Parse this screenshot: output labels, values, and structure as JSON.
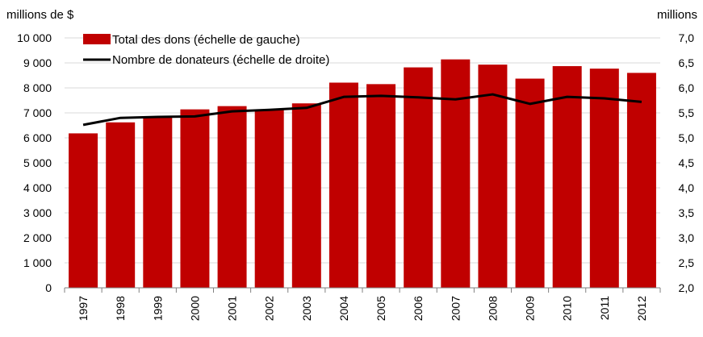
{
  "chart_data": {
    "type": "bar",
    "categories": [
      "1997",
      "1998",
      "1999",
      "2000",
      "2001",
      "2002",
      "2003",
      "2004",
      "2005",
      "2006",
      "2007",
      "2008",
      "2009",
      "2010",
      "2011",
      "2012"
    ],
    "y_left": {
      "unit_label": "millions de $",
      "ylim": [
        0,
        10000
      ],
      "ticks": [
        0,
        1000,
        2000,
        3000,
        4000,
        5000,
        6000,
        7000,
        8000,
        9000,
        10000
      ],
      "tick_labels": [
        "0",
        "1 000",
        "2 000",
        "3 000",
        "4 000",
        "5 000",
        "6 000",
        "7 000",
        "8 000",
        "9 000",
        "10 000"
      ]
    },
    "y_right": {
      "unit_label": "millions",
      "ylim": [
        2.0,
        7.0
      ],
      "ticks": [
        2.0,
        2.5,
        3.0,
        3.5,
        4.0,
        4.5,
        5.0,
        5.5,
        6.0,
        6.5,
        7.0
      ],
      "tick_labels": [
        "2,0",
        "2,5",
        "3,0",
        "3,5",
        "4,0",
        "4,5",
        "5,0",
        "5,5",
        "6,0",
        "6,5",
        "7,0"
      ]
    },
    "series": [
      {
        "name": "Total des dons (échelle de gauche)",
        "type": "bar",
        "axis": "left",
        "color": "#c00000",
        "values": [
          6180,
          6620,
          6830,
          7140,
          7270,
          7130,
          7380,
          8210,
          8150,
          8820,
          9140,
          8930,
          8370,
          8870,
          8770,
          8600
        ]
      },
      {
        "name": "Nombre de donateurs (échelle de droite)",
        "type": "line",
        "axis": "right",
        "color": "#000000",
        "values": [
          5.26,
          5.4,
          5.42,
          5.43,
          5.53,
          5.56,
          5.6,
          5.82,
          5.84,
          5.81,
          5.77,
          5.87,
          5.68,
          5.82,
          5.79,
          5.72
        ]
      }
    ],
    "grid": "horizontal",
    "legend_position": "top-left"
  }
}
